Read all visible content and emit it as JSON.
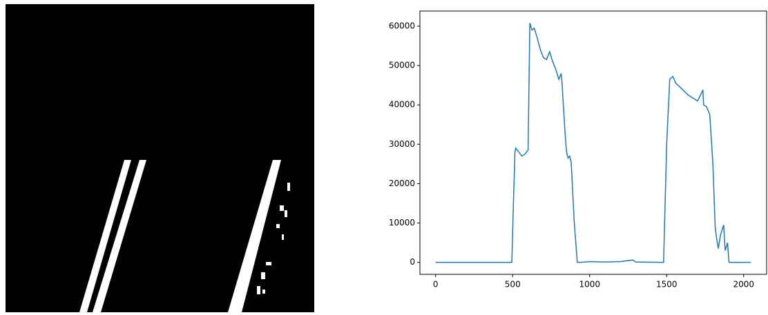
{
  "chart_data": {
    "type": "line",
    "x": [
      0,
      495,
      505,
      515,
      520,
      540,
      560,
      580,
      600,
      612,
      625,
      640,
      660,
      680,
      700,
      720,
      740,
      760,
      780,
      800,
      815,
      820,
      840,
      850,
      860,
      870,
      880,
      900,
      920,
      940,
      1000,
      1100,
      1200,
      1280,
      1300,
      1470,
      1480,
      1500,
      1520,
      1540,
      1560,
      1600,
      1640,
      1680,
      1700,
      1720,
      1735,
      1740,
      1760,
      1780,
      1800,
      1815,
      1825,
      1835,
      1850,
      1870,
      1880,
      1895,
      1905,
      2047
    ],
    "series": [
      {
        "color": "#1f77b4",
        "values": [
          0,
          0,
          15000,
          28000,
          29000,
          28000,
          27000,
          27500,
          28500,
          60800,
          59000,
          59500,
          57000,
          54000,
          52000,
          51500,
          53500,
          51000,
          49000,
          46500,
          48000,
          46000,
          33000,
          28000,
          26500,
          27000,
          25500,
          10000,
          0,
          0,
          200,
          100,
          200,
          600,
          100,
          0,
          0,
          30000,
          46500,
          47200,
          45500,
          44000,
          42500,
          41500,
          41000,
          42500,
          43800,
          40000,
          39500,
          37500,
          25000,
          9000,
          6000,
          3500,
          7000,
          9500,
          3000,
          5000,
          0,
          0
        ]
      }
    ],
    "xlim": [
      -102,
      2149
    ],
    "xticks": [
      0,
      500,
      1000,
      1500,
      2000
    ],
    "ylim": [
      -3040,
      63840
    ],
    "yticks": [
      0,
      10000,
      20000,
      30000,
      40000,
      50000,
      60000
    ]
  }
}
